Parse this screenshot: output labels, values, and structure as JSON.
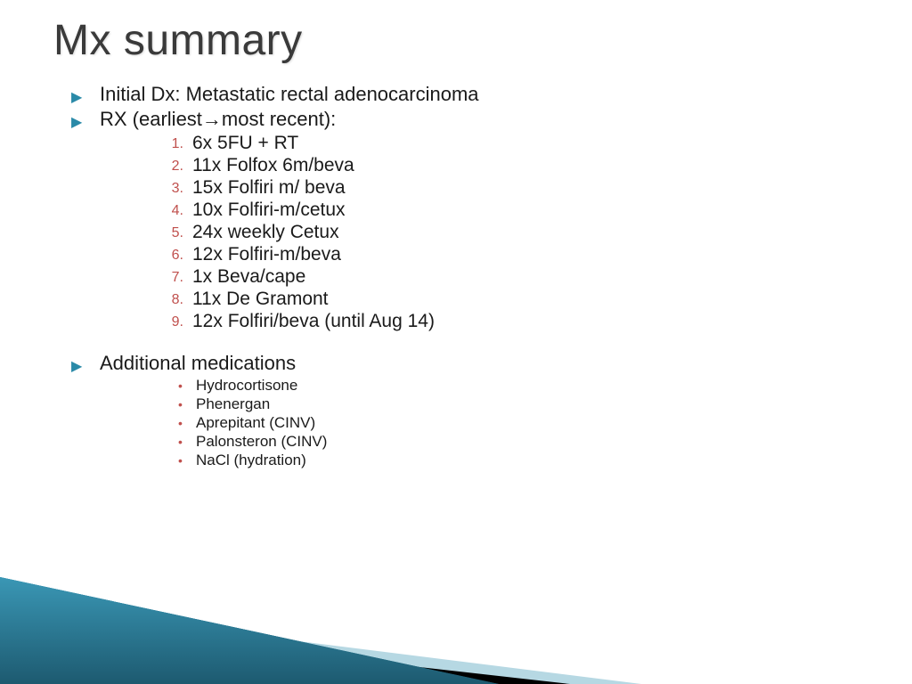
{
  "title": "Mx summary",
  "bullets": {
    "dx": "Initial Dx: Metastatic rectal adenocarcinoma",
    "rx_pre": "RX (earliest",
    "rx_post": "most recent):",
    "add_meds": "Additional medications"
  },
  "rx_list": [
    "6x 5FU + RT",
    "11x Folfox 6m/beva",
    "15x Folfiri m/ beva",
    "10x Folfiri-m/cetux",
    "24x weekly Cetux",
    "12x Folfiri-m/beva",
    "1x Beva/cape",
    "11x De Gramont",
    "12x Folfiri/beva (until Aug 14)"
  ],
  "meds": [
    "Hydrocortisone",
    "Phenergan",
    "Aprepitant (CINV)",
    "Palonsteron (CINV)",
    "NaCl (hydration)"
  ],
  "colors": {
    "accent_teal_dark": "#2b7a94",
    "accent_teal_light": "#a9d1de",
    "accent_black": "#000000",
    "num_color": "#c0504d",
    "bullet_color": "#2a8aa8",
    "title_color": "#3a3a3a"
  }
}
